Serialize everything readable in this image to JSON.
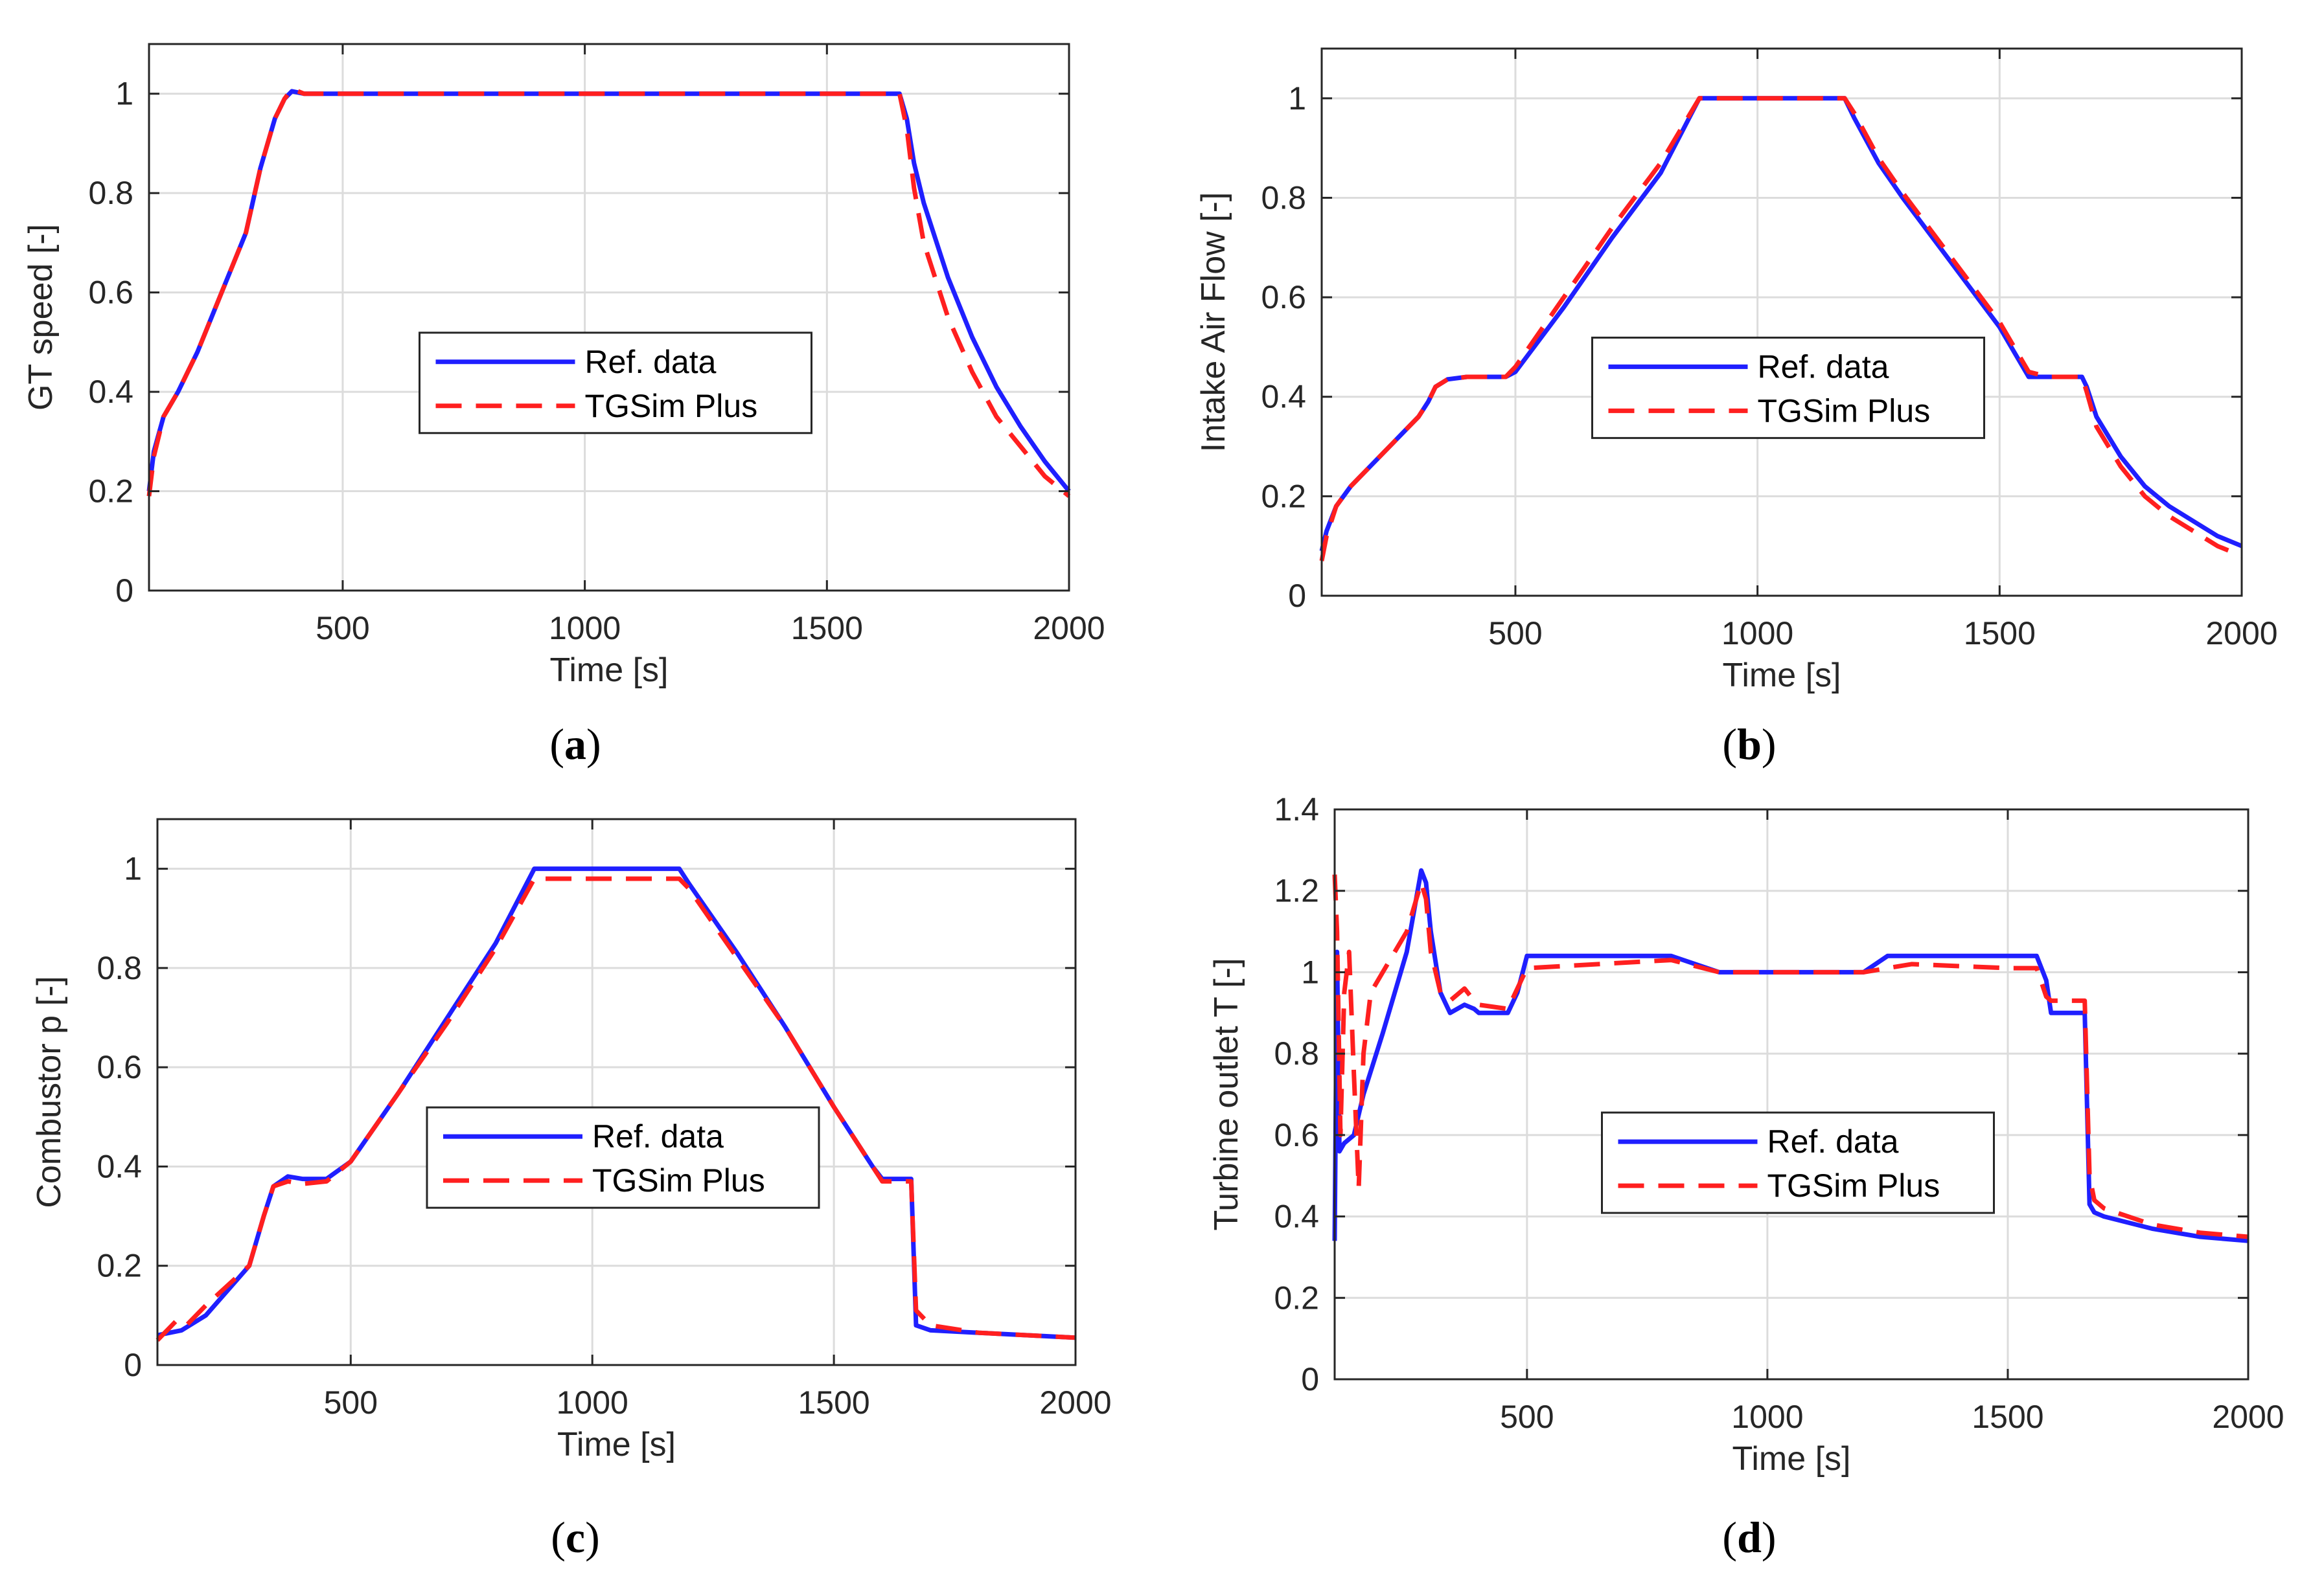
{
  "figure": {
    "panels": [
      {
        "letter": "a"
      },
      {
        "letter": "b"
      },
      {
        "letter": "c"
      },
      {
        "letter": "d"
      }
    ]
  },
  "chart_data": [
    {
      "type": "line",
      "panel": "a",
      "xlabel": "Time [s]",
      "ylabel": "GT speed [-]",
      "xlim": [
        100,
        2000
      ],
      "ylim": [
        0,
        1.1
      ],
      "xticks": [
        500,
        1000,
        1500,
        2000
      ],
      "yticks": [
        0,
        0.2,
        0.4,
        0.6,
        0.8,
        1
      ],
      "ytick_labels": [
        "0",
        "0.2",
        "0.4",
        "0.6",
        "0.8",
        "1"
      ],
      "grid": true,
      "legend": {
        "position": "center",
        "entries": [
          "Ref. data",
          "TGSim Plus"
        ]
      },
      "series": [
        {
          "name": "Ref. data",
          "color": "#1f1fff",
          "dash": "solid",
          "x": [
            100,
            110,
            130,
            160,
            200,
            250,
            300,
            330,
            360,
            380,
            395,
            420,
            500,
            1000,
            1500,
            1650,
            1665,
            1680,
            1700,
            1750,
            1800,
            1850,
            1900,
            1950,
            2000
          ],
          "y": [
            0.2,
            0.28,
            0.35,
            0.4,
            0.48,
            0.6,
            0.72,
            0.85,
            0.95,
            0.99,
            1.005,
            1.0,
            1.0,
            1.0,
            1.0,
            1.0,
            0.95,
            0.86,
            0.78,
            0.63,
            0.51,
            0.41,
            0.33,
            0.26,
            0.2
          ]
        },
        {
          "name": "TGSim Plus",
          "color": "#ff1f1f",
          "dash": "dashed",
          "x": [
            100,
            110,
            130,
            160,
            200,
            250,
            300,
            330,
            360,
            380,
            395,
            420,
            500,
            1000,
            1500,
            1650,
            1665,
            1680,
            1700,
            1750,
            1800,
            1850,
            1900,
            1950,
            2000
          ],
          "y": [
            0.19,
            0.27,
            0.35,
            0.4,
            0.48,
            0.6,
            0.72,
            0.85,
            0.95,
            0.99,
            1.01,
            1.0,
            1.0,
            1.0,
            1.0,
            1.0,
            0.93,
            0.81,
            0.7,
            0.55,
            0.44,
            0.35,
            0.29,
            0.23,
            0.19
          ]
        }
      ]
    },
    {
      "type": "line",
      "panel": "b",
      "xlabel": "Time [s]",
      "ylabel": "Intake Air Flow [-]",
      "xlim": [
        100,
        2000
      ],
      "ylim": [
        0,
        1.1
      ],
      "xticks": [
        500,
        1000,
        1500,
        2000
      ],
      "yticks": [
        0,
        0.2,
        0.4,
        0.6,
        0.8,
        1
      ],
      "ytick_labels": [
        "0",
        "0.2",
        "0.4",
        "0.6",
        "0.8",
        "1"
      ],
      "grid": true,
      "legend": {
        "position": "center",
        "entries": [
          "Ref. data",
          "TGSim Plus"
        ]
      },
      "series": [
        {
          "name": "Ref. data",
          "color": "#1f1fff",
          "dash": "solid",
          "x": [
            100,
            110,
            130,
            160,
            200,
            250,
            300,
            320,
            335,
            360,
            400,
            480,
            500,
            600,
            700,
            800,
            880,
            900,
            1000,
            1100,
            1180,
            1200,
            1250,
            1300,
            1400,
            1500,
            1560,
            1600,
            1670,
            1680,
            1700,
            1750,
            1800,
            1850,
            1900,
            1950,
            2000
          ],
          "y": [
            0.09,
            0.13,
            0.18,
            0.22,
            0.26,
            0.31,
            0.36,
            0.39,
            0.42,
            0.435,
            0.44,
            0.44,
            0.45,
            0.58,
            0.72,
            0.85,
            1.0,
            1.0,
            1.0,
            1.0,
            1.0,
            0.96,
            0.87,
            0.8,
            0.67,
            0.54,
            0.44,
            0.44,
            0.44,
            0.42,
            0.36,
            0.28,
            0.22,
            0.18,
            0.15,
            0.12,
            0.1
          ]
        },
        {
          "name": "TGSim Plus",
          "color": "#ff1f1f",
          "dash": "dashed",
          "x": [
            100,
            110,
            130,
            160,
            200,
            250,
            300,
            320,
            335,
            360,
            400,
            480,
            500,
            600,
            700,
            800,
            880,
            900,
            1000,
            1100,
            1180,
            1200,
            1250,
            1300,
            1400,
            1500,
            1560,
            1600,
            1670,
            1680,
            1700,
            1750,
            1800,
            1850,
            1900,
            1950,
            2000
          ],
          "y": [
            0.07,
            0.12,
            0.18,
            0.22,
            0.26,
            0.31,
            0.36,
            0.39,
            0.42,
            0.435,
            0.44,
            0.44,
            0.46,
            0.6,
            0.74,
            0.87,
            1.0,
            1.0,
            1.0,
            1.0,
            1.0,
            0.97,
            0.88,
            0.81,
            0.68,
            0.55,
            0.45,
            0.44,
            0.44,
            0.41,
            0.34,
            0.26,
            0.2,
            0.16,
            0.13,
            0.1,
            0.08
          ]
        }
      ]
    },
    {
      "type": "line",
      "panel": "c",
      "xlabel": "Time [s]",
      "ylabel": "Combustor p [-]",
      "xlim": [
        100,
        2000
      ],
      "ylim": [
        0,
        1.1
      ],
      "xticks": [
        500,
        1000,
        1500,
        2000
      ],
      "yticks": [
        0,
        0.2,
        0.4,
        0.6,
        0.8,
        1
      ],
      "ytick_labels": [
        "0",
        "0.2",
        "0.4",
        "0.6",
        "0.8",
        "1"
      ],
      "grid": true,
      "legend": {
        "position": "center",
        "entries": [
          "Ref. data",
          "TGSim Plus"
        ]
      },
      "series": [
        {
          "name": "Ref. data",
          "color": "#1f1fff",
          "dash": "solid",
          "x": [
            100,
            150,
            200,
            290,
            320,
            340,
            370,
            400,
            450,
            500,
            600,
            700,
            800,
            880,
            900,
            1000,
            1100,
            1180,
            1200,
            1300,
            1400,
            1500,
            1580,
            1600,
            1660,
            1670,
            1700,
            1800,
            1900,
            2000
          ],
          "y": [
            0.06,
            0.07,
            0.1,
            0.2,
            0.3,
            0.36,
            0.38,
            0.375,
            0.375,
            0.41,
            0.55,
            0.7,
            0.85,
            1.0,
            1.0,
            1.0,
            1.0,
            1.0,
            0.97,
            0.83,
            0.68,
            0.52,
            0.4,
            0.375,
            0.375,
            0.08,
            0.07,
            0.065,
            0.06,
            0.055
          ]
        },
        {
          "name": "TGSim Plus",
          "color": "#ff1f1f",
          "dash": "dashed",
          "x": [
            100,
            120,
            140,
            160,
            200,
            290,
            320,
            340,
            370,
            400,
            450,
            500,
            600,
            700,
            800,
            880,
            900,
            1000,
            1100,
            1180,
            1200,
            1300,
            1400,
            1500,
            1580,
            1600,
            1660,
            1670,
            1700,
            1800,
            1900,
            2000
          ],
          "y": [
            0.05,
            0.07,
            0.09,
            0.08,
            0.12,
            0.2,
            0.3,
            0.36,
            0.37,
            0.365,
            0.37,
            0.41,
            0.55,
            0.69,
            0.84,
            0.98,
            0.98,
            0.98,
            0.98,
            0.98,
            0.96,
            0.82,
            0.68,
            0.52,
            0.4,
            0.37,
            0.37,
            0.11,
            0.08,
            0.065,
            0.06,
            0.055
          ]
        }
      ]
    },
    {
      "type": "line",
      "panel": "d",
      "xlabel": "Time [s]",
      "ylabel": "Turbine outlet T [-]",
      "xlim": [
        100,
        2000
      ],
      "ylim": [
        0,
        1.4
      ],
      "xticks": [
        500,
        1000,
        1500,
        2000
      ],
      "yticks": [
        0,
        0.2,
        0.4,
        0.6,
        0.8,
        1,
        1.2,
        1.4
      ],
      "ytick_labels": [
        "0",
        "0.2",
        "0.4",
        "0.6",
        "0.8",
        "1",
        "1.2",
        "1.4"
      ],
      "grid": true,
      "legend": {
        "position": "center",
        "entries": [
          "Ref. data",
          "TGSim Plus"
        ]
      },
      "series": [
        {
          "name": "Ref. data",
          "color": "#1f1fff",
          "dash": "solid",
          "x": [
            100,
            105,
            110,
            120,
            140,
            160,
            200,
            250,
            280,
            290,
            300,
            320,
            340,
            370,
            390,
            400,
            460,
            480,
            500,
            800,
            900,
            1000,
            1100,
            1200,
            1250,
            1300,
            1500,
            1560,
            1580,
            1590,
            1660,
            1670,
            1680,
            1700,
            1800,
            1900,
            2000
          ],
          "y": [
            0.34,
            1.05,
            0.56,
            0.58,
            0.6,
            0.7,
            0.85,
            1.05,
            1.25,
            1.22,
            1.1,
            0.95,
            0.9,
            0.92,
            0.91,
            0.9,
            0.9,
            0.95,
            1.04,
            1.04,
            1.0,
            1.0,
            1.0,
            1.0,
            1.04,
            1.04,
            1.04,
            1.04,
            0.98,
            0.9,
            0.9,
            0.43,
            0.41,
            0.4,
            0.37,
            0.35,
            0.34
          ]
        },
        {
          "name": "TGSim Plus",
          "color": "#ff1f1f",
          "dash": "dashed",
          "x": [
            100,
            105,
            112,
            120,
            130,
            140,
            150,
            160,
            175,
            200,
            250,
            280,
            290,
            300,
            320,
            340,
            370,
            390,
            400,
            460,
            480,
            500,
            800,
            900,
            1000,
            1100,
            1200,
            1250,
            1300,
            1500,
            1560,
            1580,
            1590,
            1660,
            1670,
            1680,
            1700,
            1800,
            1900,
            2000
          ],
          "y": [
            1.24,
            1.1,
            0.6,
            0.95,
            1.05,
            0.75,
            0.47,
            0.8,
            0.95,
            1.0,
            1.1,
            1.22,
            1.18,
            1.05,
            0.95,
            0.93,
            0.96,
            0.93,
            0.92,
            0.91,
            0.96,
            1.01,
            1.03,
            1.0,
            1.0,
            1.0,
            1.0,
            1.01,
            1.02,
            1.01,
            1.01,
            0.94,
            0.93,
            0.93,
            0.5,
            0.44,
            0.42,
            0.38,
            0.36,
            0.35
          ]
        }
      ]
    }
  ]
}
